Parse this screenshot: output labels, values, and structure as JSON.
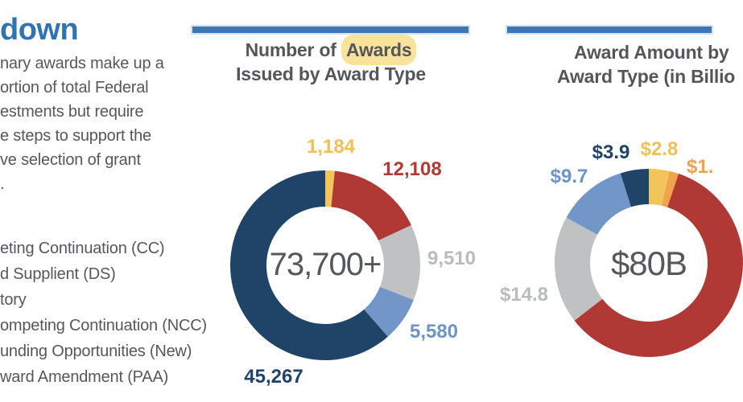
{
  "palette": {
    "heading_blue": "#2E74B5",
    "bar_blue": "#3B76B5",
    "title_gray": "#53565A",
    "body_gray": "#55575C",
    "highlight_yellow": "#FAE29B"
  },
  "left_panel": {
    "heading": "down",
    "paragraph_lines": [
      "nary awards make up a",
      "ortion of total Federal",
      "estments but require",
      "e steps to support the",
      "ve selection of grant",
      "."
    ],
    "list_items": [
      "eting Continuation (CC)",
      "d Supplient (DS)",
      "tory",
      "ompeting Continuation (NCC)",
      "unding Opportunities (New)",
      "ward Amendment (PAA)"
    ]
  },
  "charts": {
    "awards_count": {
      "title_prefix": "Number of ",
      "title_highlight": "Awards",
      "title_line2": "Issued by Award Type"
    },
    "award_amount": {
      "title_line1": "Award Amount by",
      "title_line2": "Award Type (in Billio"
    }
  },
  "chart_data": [
    {
      "type": "pie",
      "subtype": "donut",
      "title": "Number of Awards Issued by Award Type",
      "center_label": "73,700+",
      "start_angle_deg": 0,
      "direction": "clockwise",
      "legend_position": "labels-around-ring",
      "segments": [
        {
          "label": "1,184",
          "value": 1184,
          "color": "#F2C45C",
          "label_color": "#EFC05A"
        },
        {
          "label": "12,108",
          "value": 12108,
          "color": "#B13935",
          "label_color": "#B13935"
        },
        {
          "label": "9,510",
          "value": 9510,
          "color": "#BFC1C3",
          "label_color": "#B9BBBD"
        },
        {
          "label": "5,580",
          "value": 5580,
          "color": "#7396C8",
          "label_color": "#6E93C6"
        },
        {
          "label": "45,267",
          "value": 45267,
          "color": "#1F4468",
          "label_color": "#1F4468"
        }
      ]
    },
    {
      "type": "pie",
      "subtype": "donut",
      "title": "Award Amount by Award Type (in Billio",
      "center_label": "$80B",
      "start_angle_deg": 0,
      "direction": "clockwise",
      "legend_position": "labels-around-ring",
      "segments": [
        {
          "label": "$2.8",
          "value": 2.8,
          "color": "#F2C45C",
          "label_color": "#EFC05A"
        },
        {
          "label": "$1.",
          "value": 1.3,
          "color": "#F0A24C",
          "label_color": "#F0A24C",
          "estimated": true
        },
        {
          "label": "",
          "value": 47.5,
          "color": "#B13935",
          "label_color": "#B13935",
          "estimated": true
        },
        {
          "label": "$14.8",
          "value": 14.8,
          "color": "#BFC1C3",
          "label_color": "#B9BBBD"
        },
        {
          "label": "$9.7",
          "value": 9.7,
          "color": "#7396C8",
          "label_color": "#6E93C6"
        },
        {
          "label": "$3.9",
          "value": 3.9,
          "color": "#1F4468",
          "label_color": "#1F4468"
        }
      ]
    }
  ]
}
